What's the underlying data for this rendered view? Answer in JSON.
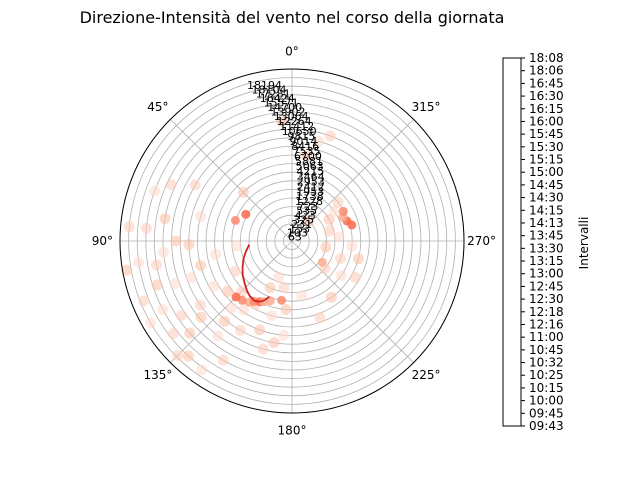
{
  "title": "Direzione-Intensità del vento nel corso della giornata",
  "colorbar": {
    "label": "Intervalli",
    "ticks": [
      "09:43",
      "09:45",
      "10:00",
      "10:15",
      "10:25",
      "10:32",
      "10:45",
      "11:00",
      "12:16",
      "12:18",
      "12:30",
      "12:45",
      "13:00",
      "13:15",
      "13:30",
      "13:45",
      "14:13",
      "14:15",
      "14:30",
      "14:45",
      "15:00",
      "15:15",
      "15:30",
      "15:45",
      "16:00",
      "16:15",
      "16:30",
      "16:45",
      "18:06",
      "18:08"
    ]
  },
  "chart_data": {
    "type": "scatter",
    "projection": "polar",
    "theta_zero": "N",
    "theta_direction": "counter-clockwise",
    "theta_ticks": [
      "0°",
      "45°",
      "90°",
      "135°",
      "180°",
      "225°",
      "270°",
      "315°"
    ],
    "r_grid_count": 20,
    "grid": true,
    "colormap": "Reds",
    "radial_labels": [
      "63",
      "103",
      "153",
      "231",
      "325",
      "423",
      "535",
      "723",
      "1228",
      "1738",
      "1953",
      "2412",
      "2953",
      "3464",
      "4215",
      "5063",
      "5881",
      "6700",
      "7535",
      "8416",
      "9014",
      "9815",
      "10650",
      "11412",
      "12264",
      "13064",
      "13902",
      "14700",
      "15571",
      "16424",
      "17281",
      "18104",
      "18194"
    ],
    "points": [
      {
        "theta": 95,
        "r": 15
      },
      {
        "theta": 100,
        "r": 16
      },
      {
        "theta": 108,
        "r": 16.5
      },
      {
        "theta": 118,
        "r": 17
      },
      {
        "theta": 128,
        "r": 17.5
      },
      {
        "theta": 138,
        "r": 18
      },
      {
        "theta": 145,
        "r": 18.3
      },
      {
        "theta": 85,
        "r": 19
      },
      {
        "theta": 100,
        "r": 19.5
      },
      {
        "theta": 120,
        "r": 19
      },
      {
        "theta": 135,
        "r": 18.8
      },
      {
        "theta": 92,
        "r": 12
      },
      {
        "theta": 110,
        "r": 12.5
      },
      {
        "theta": 125,
        "r": 13
      },
      {
        "theta": 140,
        "r": 12.2
      },
      {
        "theta": 75,
        "r": 11
      },
      {
        "theta": 60,
        "r": 13
      },
      {
        "theta": 45,
        "r": 8
      },
      {
        "theta": 100,
        "r": 9
      },
      {
        "theta": 118,
        "r": 7.5
      },
      {
        "theta": 128,
        "r": 9.5
      },
      {
        "theta": 138,
        "r": 10.5
      },
      {
        "theta": 150,
        "r": 8.5
      },
      {
        "theta": 155,
        "r": 6
      },
      {
        "theta": 160,
        "r": 4.5
      },
      {
        "theta": 170,
        "r": 5.5
      },
      {
        "theta": 175,
        "r": 8
      },
      {
        "theta": 190,
        "r": 6.5
      },
      {
        "theta": 200,
        "r": 9.5
      },
      {
        "theta": 215,
        "r": 8
      },
      {
        "theta": 235,
        "r": 7
      },
      {
        "theta": 250,
        "r": 6
      },
      {
        "theta": 260,
        "r": 4
      },
      {
        "theta": 275,
        "r": 5.5
      },
      {
        "theta": 285,
        "r": 4.5
      },
      {
        "theta": 300,
        "r": 5
      },
      {
        "theta": 305,
        "r": 6
      },
      {
        "theta": 310,
        "r": 7
      },
      {
        "theta": 320,
        "r": 3
      },
      {
        "theta": 110,
        "r": 14.5
      },
      {
        "theta": 124,
        "r": 15.5
      },
      {
        "theta": 132,
        "r": 16
      },
      {
        "theta": 142,
        "r": 14
      },
      {
        "theta": 150,
        "r": 12
      },
      {
        "theta": 160,
        "r": 11
      },
      {
        "theta": 165,
        "r": 9
      },
      {
        "theta": 85,
        "r": 17
      },
      {
        "theta": 80,
        "r": 15
      },
      {
        "theta": 70,
        "r": 17
      },
      {
        "theta": 65,
        "r": 15.5
      },
      {
        "theta": 90,
        "r": 13.5
      },
      {
        "theta": 98,
        "r": 18
      },
      {
        "theta": 112,
        "r": 18.6
      },
      {
        "theta": 130,
        "r": 13.8
      },
      {
        "theta": 145,
        "r": 9.8
      },
      {
        "theta": 240,
        "r": 8.5
      },
      {
        "theta": 255,
        "r": 8
      },
      {
        "theta": 265,
        "r": 7
      },
      {
        "theta": 230,
        "r": 5
      },
      {
        "theta": 350,
        "r": 10
      },
      {
        "theta": 345,
        "r": 12
      },
      {
        "theta": 340,
        "r": 13
      },
      {
        "theta": 5,
        "r": 14
      },
      {
        "theta": 120,
        "r": 10.5
      },
      {
        "theta": 135,
        "r": 8.3
      },
      {
        "theta": 105,
        "r": 11
      },
      {
        "theta": 95,
        "r": 6.5
      },
      {
        "theta": 165,
        "r": 13
      },
      {
        "theta": 170,
        "r": 12
      },
      {
        "theta": 175,
        "r": 11
      },
      {
        "theta": 150,
        "r": 16
      }
    ],
    "emphasis_points": [
      {
        "theta": 145,
        "r": 8.7
      },
      {
        "theta": 148,
        "r": 8.3
      },
      {
        "theta": 152,
        "r": 8
      },
      {
        "theta": 155,
        "r": 7.8
      },
      {
        "theta": 140,
        "r": 9
      },
      {
        "theta": 135,
        "r": 9.2
      },
      {
        "theta": 160,
        "r": 7.4
      },
      {
        "theta": 170,
        "r": 7
      },
      {
        "theta": 290,
        "r": 6.8
      },
      {
        "theta": 295,
        "r": 6.5
      },
      {
        "theta": 300,
        "r": 6.9
      },
      {
        "theta": 285,
        "r": 7.2
      },
      {
        "theta": 235,
        "r": 4.3
      },
      {
        "theta": 70,
        "r": 7
      },
      {
        "theta": 60,
        "r": 6.2
      }
    ],
    "trajectory": [
      {
        "theta": 95,
        "r": 5
      },
      {
        "theta": 103,
        "r": 5.5
      },
      {
        "theta": 110,
        "r": 6
      },
      {
        "theta": 118,
        "r": 6.5
      },
      {
        "theta": 125,
        "r": 7
      },
      {
        "theta": 132,
        "r": 7.4
      },
      {
        "theta": 138,
        "r": 7.8
      },
      {
        "theta": 143,
        "r": 8.1
      },
      {
        "theta": 148,
        "r": 8.2
      },
      {
        "theta": 152,
        "r": 8
      },
      {
        "theta": 155,
        "r": 7.6
      },
      {
        "theta": 158,
        "r": 7
      }
    ]
  }
}
